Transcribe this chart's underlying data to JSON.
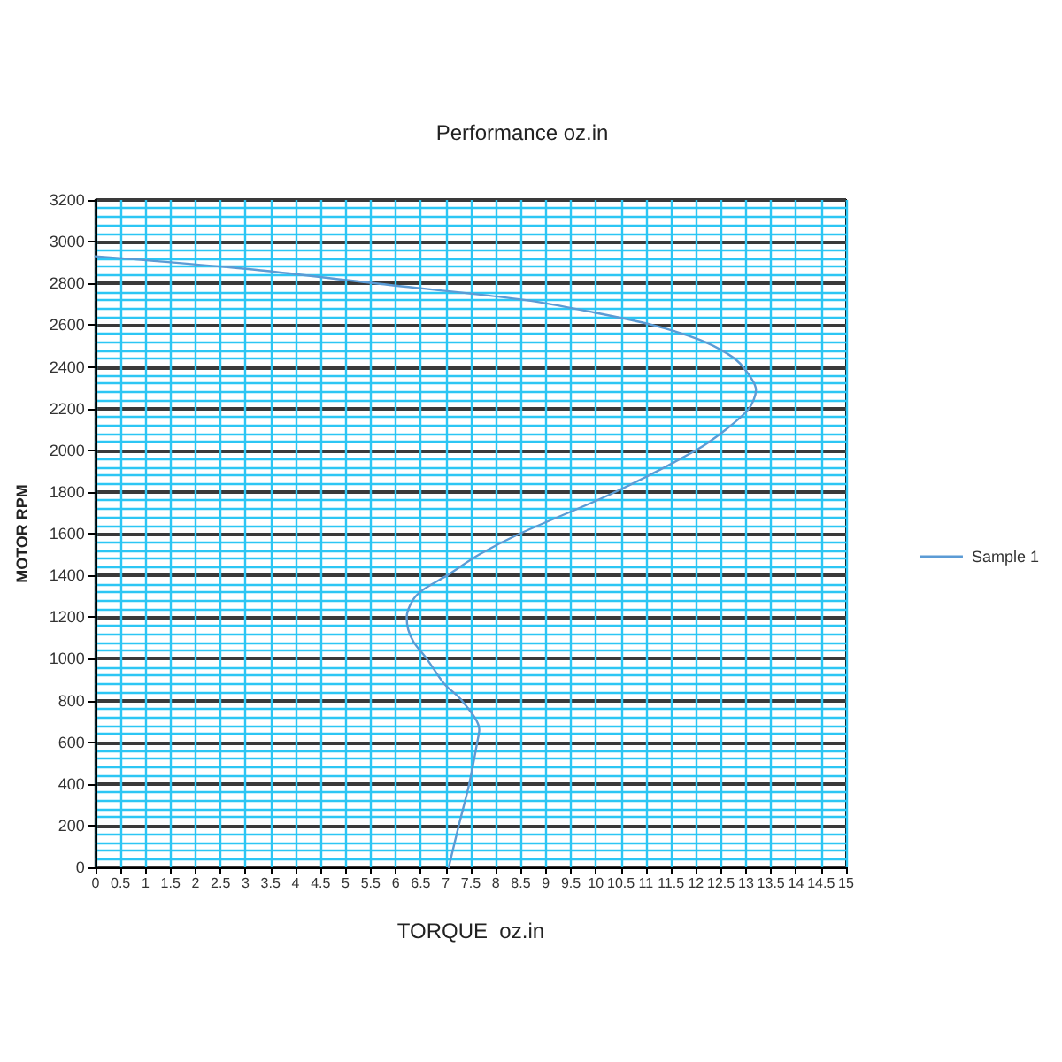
{
  "chart_data": {
    "type": "line",
    "title": "Performance oz.in",
    "xlabel": "TORQUE  oz.in",
    "ylabel": "MOTOR RPM",
    "series": [
      {
        "name": "Sample 1",
        "color": "#5b9bd5",
        "x": [
          7.06,
          7.26,
          7.47,
          7.63,
          7.67,
          7.32,
          6.97,
          6.62,
          6.36,
          6.25,
          6.22,
          6.34,
          6.54,
          7.03,
          7.67,
          8.48,
          10.3,
          12.0,
          12.6,
          13.06,
          13.2,
          12.94,
          12.65,
          12.07,
          11.14,
          9.98,
          8.6,
          5.6,
          3.0,
          0
        ],
        "values": [
          0,
          200,
          400,
          600,
          660,
          800,
          880,
          1000,
          1080,
          1140,
          1200,
          1280,
          1330,
          1400,
          1500,
          1600,
          1790,
          2000,
          2100,
          2200,
          2290,
          2400,
          2460,
          2530,
          2600,
          2660,
          2720,
          2800,
          2870,
          2930
        ]
      }
    ],
    "xlim": [
      0,
      15
    ],
    "xticks": [
      0,
      0.5,
      1,
      1.5,
      2,
      2.5,
      3,
      3.5,
      4,
      4.5,
      5,
      5.5,
      6,
      6.5,
      7,
      7.5,
      8,
      8.5,
      9,
      9.5,
      10,
      10.5,
      11,
      11.5,
      12,
      12.5,
      13,
      13.5,
      14,
      14.5,
      15
    ],
    "ylim": [
      0,
      3200
    ],
    "yticks": [
      0,
      200,
      400,
      600,
      800,
      1000,
      1200,
      1400,
      1600,
      1800,
      2000,
      2200,
      2400,
      2600,
      2800,
      3000,
      3200
    ],
    "grid": true,
    "legend": "right",
    "marker": "none",
    "line_style": "solid"
  }
}
